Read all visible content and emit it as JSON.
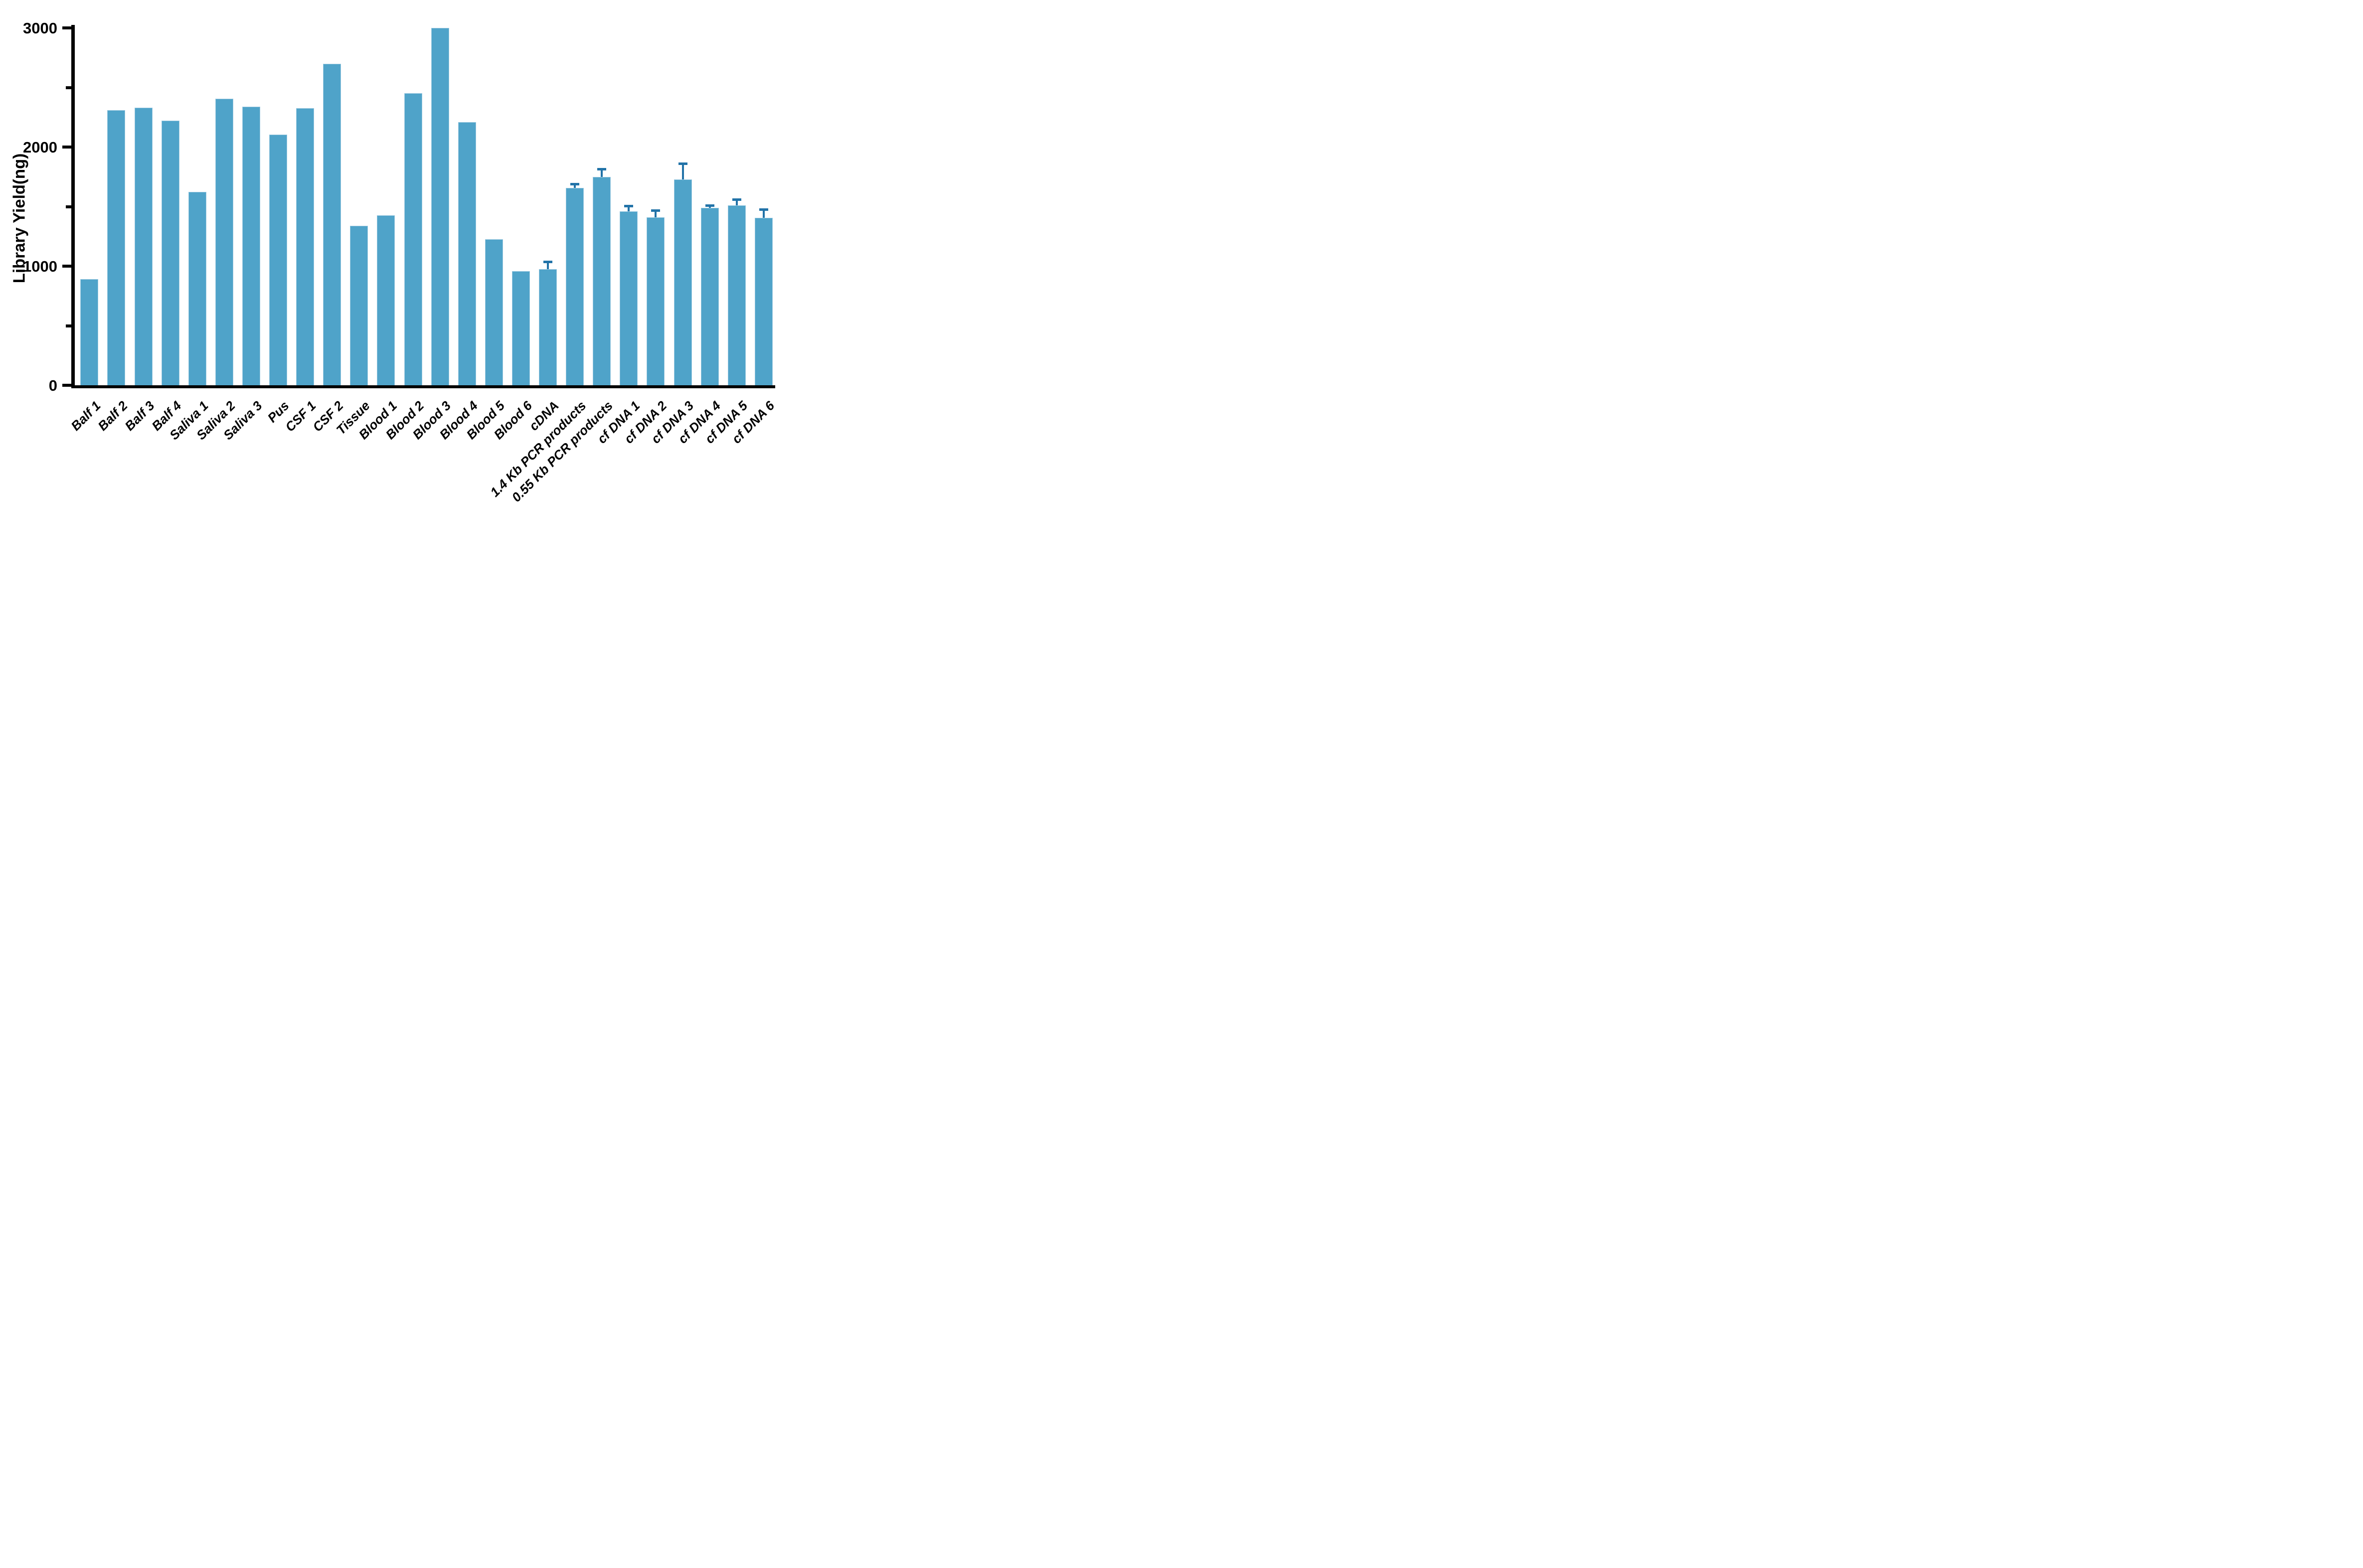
{
  "chart_data": {
    "type": "bar",
    "title": "",
    "xlabel": "",
    "ylabel": "Library Yield(ng)",
    "ylim": [
      0,
      3000
    ],
    "yticks_major": [
      0,
      1000,
      2000,
      3000
    ],
    "yticks_minor": [
      500,
      1500,
      2500
    ],
    "grid": false,
    "legend": null,
    "orientation": "vertical",
    "error_bars": "upper-only",
    "categories": [
      "Balf 1",
      "Balf 2",
      "Balf 3",
      "Balf 4",
      "Saliva 1",
      "Saliva 2",
      "Saliva 3",
      "Pus",
      "CSF 1",
      "CSF 2",
      "Tissue",
      "Blood 1",
      "Blood 2",
      "Blood 3",
      "Blood 4",
      "Blood 5",
      "Blood 6",
      "cDNA",
      "1.4 Kb PCR products",
      "0.55 Kb PCR products",
      "cf DNA 1",
      "cf DNA 2",
      "cf DNA 3",
      "cf DNA 4",
      "cf DNA 5",
      "cf DNA 6"
    ],
    "values": [
      890,
      2310,
      2330,
      2220,
      1625,
      2405,
      2340,
      2105,
      2325,
      2700,
      1340,
      1425,
      2450,
      3000,
      2210,
      1225,
      960,
      975,
      1655,
      1750,
      1460,
      1410,
      1730,
      1490,
      1510,
      1405
    ],
    "errors": [
      null,
      null,
      null,
      null,
      null,
      null,
      null,
      null,
      null,
      null,
      null,
      null,
      null,
      null,
      null,
      null,
      null,
      60,
      35,
      65,
      45,
      55,
      130,
      18,
      50,
      70
    ],
    "colors": {
      "bar_fill": "#4FA3C9",
      "bar_edge": "#9CC9E0",
      "error_bar": "#2273A8",
      "axis": "#000000",
      "text": "#000000",
      "background": "#FFFFFF"
    }
  }
}
